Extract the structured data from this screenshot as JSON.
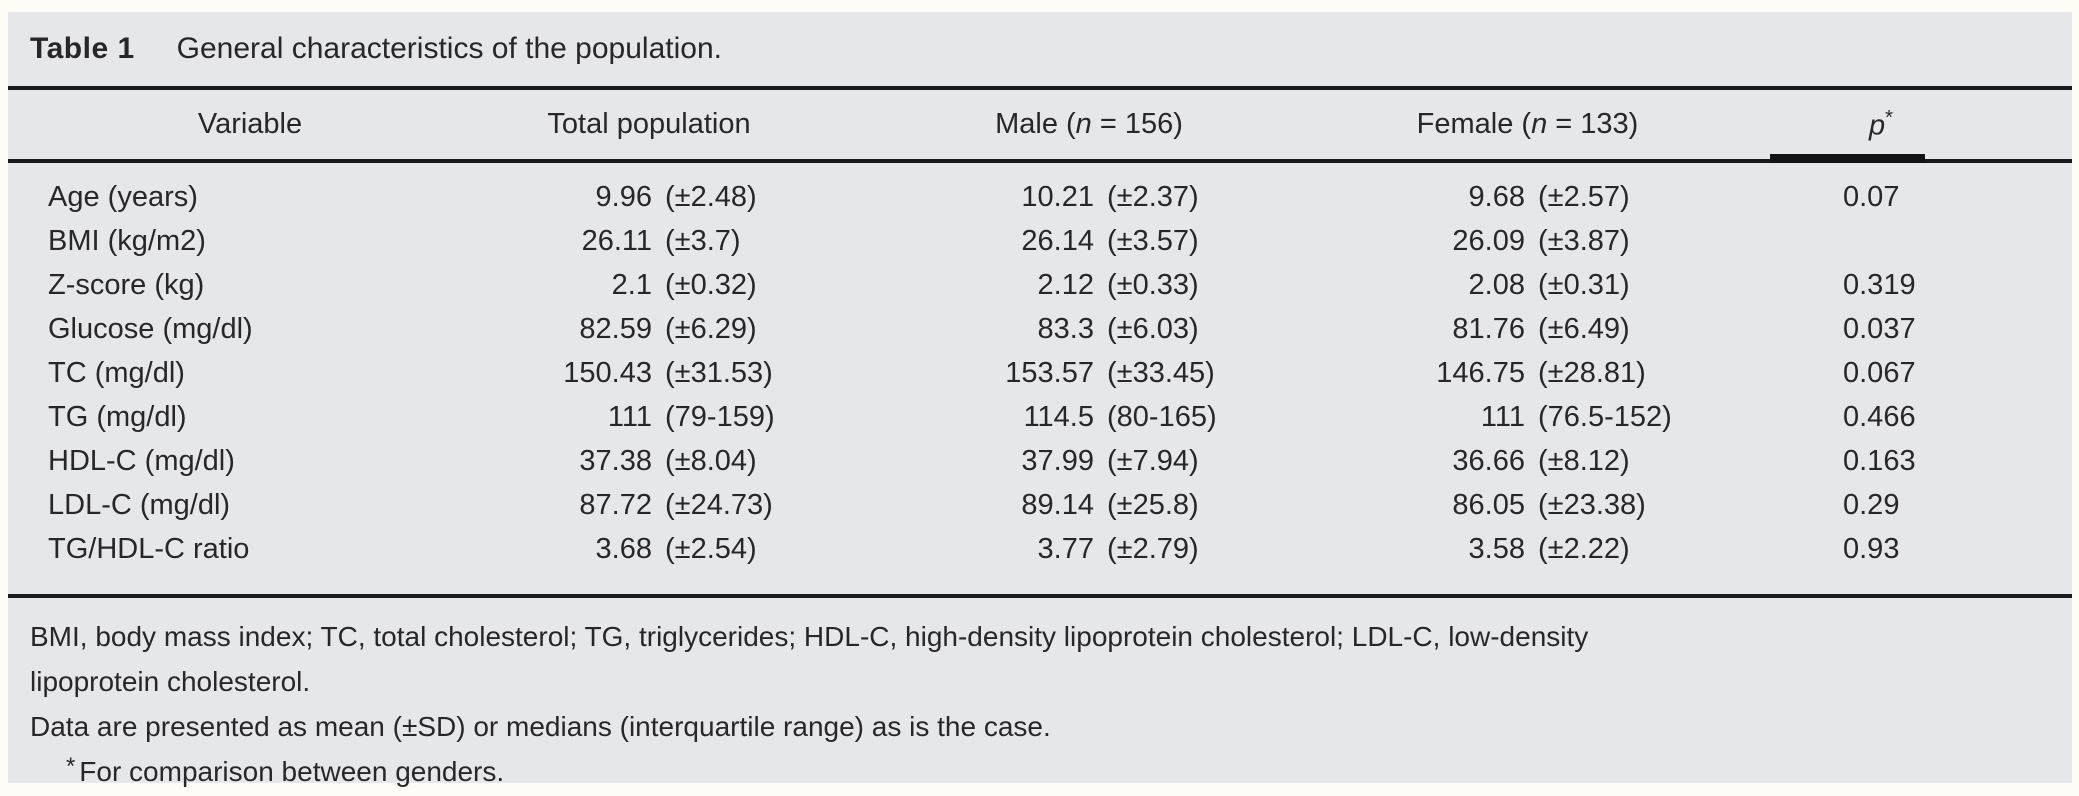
{
  "colors": {
    "page_background": "#fdfcf6",
    "panel_background": "#e6e7e9",
    "rule": "#1a191d",
    "text": "#29262b"
  },
  "caption": {
    "label": "Table 1",
    "title": "General characteristics of the population."
  },
  "header": {
    "variable": "Variable",
    "total_population": "Total population",
    "male": {
      "pre": "Male (",
      "n": "n",
      "post": " = 156)"
    },
    "female": {
      "pre": "Female (",
      "n": "n",
      "post": " = 133)"
    },
    "p": {
      "base": "p",
      "sup": "*"
    }
  },
  "rows": [
    {
      "label": "Age (years)",
      "total": {
        "num": "9.96",
        "disp": "(±2.48)"
      },
      "male": {
        "num": "10.21",
        "disp": "(±2.37)"
      },
      "female": {
        "num": "9.68",
        "disp": "(±2.57)"
      },
      "p": "0.07"
    },
    {
      "label": "BMI (kg/m2)",
      "total": {
        "num": "26.11",
        "disp": "(±3.7)"
      },
      "male": {
        "num": "26.14",
        "disp": "(±3.57)"
      },
      "female": {
        "num": "26.09",
        "disp": "(±3.87)"
      },
      "p": ""
    },
    {
      "label": "Z-score (kg)",
      "total": {
        "num": "2.1",
        "disp": "(±0.32)"
      },
      "male": {
        "num": "2.12",
        "disp": "(±0.33)"
      },
      "female": {
        "num": "2.08",
        "disp": "(±0.31)"
      },
      "p": "0.319"
    },
    {
      "label": "Glucose (mg/dl)",
      "total": {
        "num": "82.59",
        "disp": "(±6.29)"
      },
      "male": {
        "num": "83.3",
        "disp": "(±6.03)"
      },
      "female": {
        "num": "81.76",
        "disp": "(±6.49)"
      },
      "p": "0.037"
    },
    {
      "label": "TC (mg/dl)",
      "total": {
        "num": "150.43",
        "disp": "(±31.53)"
      },
      "male": {
        "num": "153.57",
        "disp": "(±33.45)"
      },
      "female": {
        "num": "146.75",
        "disp": "(±28.81)"
      },
      "p": "0.067"
    },
    {
      "label": "TG (mg/dl)",
      "total": {
        "num": "111",
        "disp": "(79-159)"
      },
      "male": {
        "num": "114.5",
        "disp": "(80-165)"
      },
      "female": {
        "num": "111",
        "disp": "(76.5-152)"
      },
      "p": "0.466"
    },
    {
      "label": "HDL-C (mg/dl)",
      "total": {
        "num": "37.38",
        "disp": "(±8.04)"
      },
      "male": {
        "num": "37.99",
        "disp": "(±7.94)"
      },
      "female": {
        "num": "36.66",
        "disp": "(±8.12)"
      },
      "p": "0.163"
    },
    {
      "label": "LDL-C (mg/dl)",
      "total": {
        "num": "87.72",
        "disp": "(±24.73)"
      },
      "male": {
        "num": "89.14",
        "disp": "(±25.8)"
      },
      "female": {
        "num": "86.05",
        "disp": "(±23.38)"
      },
      "p": "0.29"
    },
    {
      "label": "TG/HDL-C ratio",
      "total": {
        "num": "3.68",
        "disp": "(±2.54)"
      },
      "male": {
        "num": "3.77",
        "disp": "(±2.79)"
      },
      "female": {
        "num": "3.58",
        "disp": "(±2.22)"
      },
      "p": "0.93"
    }
  ],
  "footnotes": {
    "abbrev_line1": "BMI, body mass index; TC, total cholesterol; TG, triglycerides; HDL-C, high-density lipoprotein cholesterol; LDL-C, low-density",
    "abbrev_line2": "lipoprotein cholesterol.",
    "data_note": "Data are presented as mean (±SD) or medians (interquartile range) as is the case.",
    "star_marker": "*",
    "star_note": "For comparison between genders."
  }
}
